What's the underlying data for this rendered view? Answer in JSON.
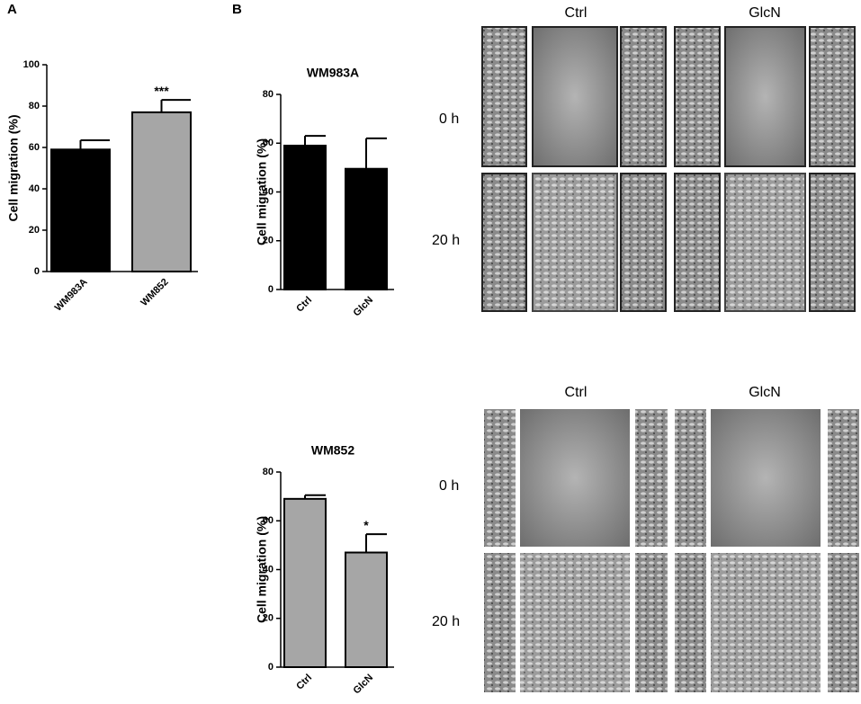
{
  "panel_labels": [
    "A",
    "B"
  ],
  "image_grids": [
    {
      "columns": [
        "Ctrl",
        "GlcN"
      ],
      "rows": [
        "0 h",
        "20 h"
      ]
    },
    {
      "columns": [
        "Ctrl",
        "GlcN"
      ],
      "rows": [
        "0 h",
        "20 h"
      ]
    }
  ],
  "chart_data": [
    {
      "type": "bar",
      "ylabel": "Cell migration (%)",
      "categories": [
        "WM983A",
        "WM852"
      ],
      "values": [
        59,
        77
      ],
      "errors": [
        4.5,
        6
      ],
      "significance": [
        null,
        "***"
      ],
      "colors": [
        "#000000",
        "#a6a6a6"
      ],
      "ylim": [
        0,
        100
      ],
      "yticks": [
        0,
        20,
        40,
        60,
        80,
        100
      ]
    },
    {
      "type": "bar",
      "title": "WM983A",
      "ylabel": "Cell migration (%)",
      "categories": [
        "Ctrl",
        "GlcN"
      ],
      "values": [
        59,
        49.5
      ],
      "errors": [
        4,
        12.5
      ],
      "colors": [
        "#000000",
        "#000000"
      ],
      "ylim": [
        0,
        80
      ],
      "yticks": [
        0,
        20,
        40,
        60,
        80
      ]
    },
    {
      "type": "bar",
      "title": "WM852",
      "ylabel": "Cell migration (%)",
      "categories": [
        "Ctrl",
        "GlcN"
      ],
      "values": [
        69,
        47
      ],
      "errors": [
        1.5,
        7.5
      ],
      "significance": [
        null,
        "*"
      ],
      "colors": [
        "#a6a6a6",
        "#a6a6a6"
      ],
      "ylim": [
        0,
        80
      ],
      "yticks": [
        0,
        20,
        40,
        60,
        80
      ]
    }
  ]
}
